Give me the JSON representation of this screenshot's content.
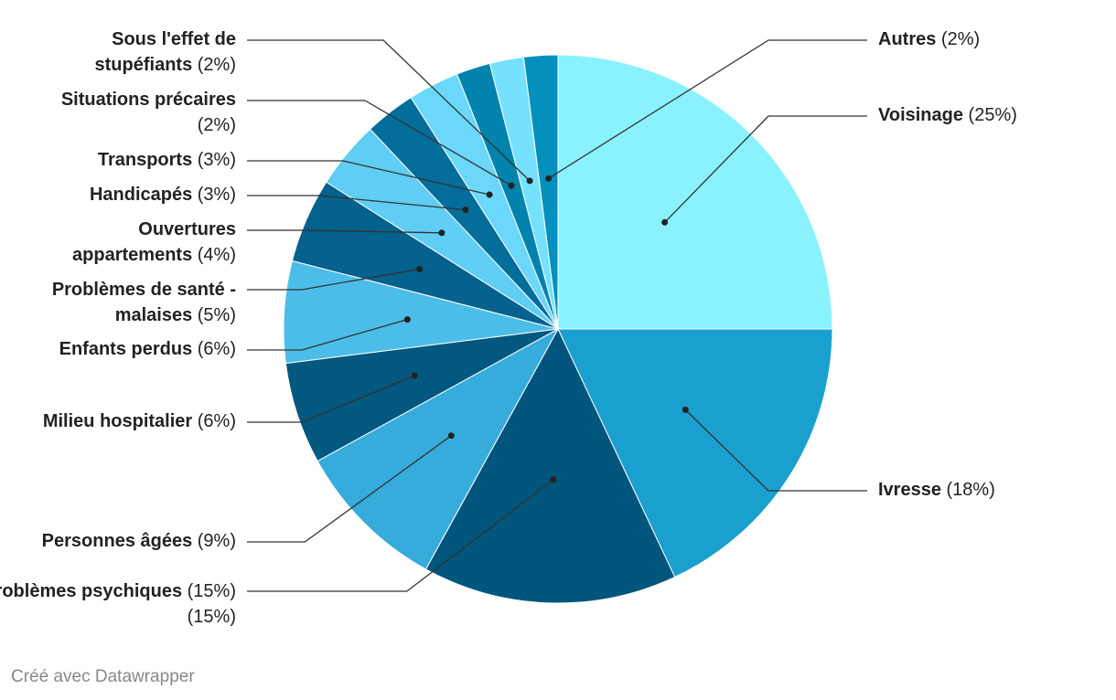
{
  "chart_data": {
    "type": "pie",
    "start_angle": "12 o'clock",
    "direction": "clockwise",
    "slices": [
      {
        "label": "Voisinage",
        "value": 25,
        "pct": "(25%)",
        "color": "#8af2ff"
      },
      {
        "label": "Ivresse",
        "value": 18,
        "pct": "(18%)",
        "color": "#1aa0cf"
      },
      {
        "label": "Problèmes psychiques",
        "value": 15,
        "pct": "(15%)",
        "color": "#02557d"
      },
      {
        "label": "Personnes âgées",
        "value": 9,
        "pct": "(9%)",
        "color": "#36acdc"
      },
      {
        "label": "Milieu hospitalier",
        "value": 6,
        "pct": "(6%)",
        "color": "#02587f"
      },
      {
        "label": "Enfants perdus",
        "value": 6,
        "pct": "(6%)",
        "color": "#4cbde8"
      },
      {
        "label": "Problèmes de santé - malaises",
        "value": 5,
        "pct": "(5%)",
        "color": "#05618d"
      },
      {
        "label": "Ouvertures appartements",
        "value": 4,
        "pct": "(4%)",
        "color": "#5fcdf4"
      },
      {
        "label": "Handicapés",
        "value": 3,
        "pct": "(3%)",
        "color": "#046e9b"
      },
      {
        "label": "Transports",
        "value": 3,
        "pct": "(3%)",
        "color": "#6ad7fb"
      },
      {
        "label": "Situations précaires",
        "value": 2,
        "pct": "(2%)",
        "color": "#0183ad"
      },
      {
        "label": "Sous l'effet de stupéfiants",
        "value": 2,
        "pct": "(2%)",
        "color": "#75e1fd"
      },
      {
        "label": "Autres",
        "value": 2,
        "pct": "(2%)",
        "color": "#0390bd"
      }
    ]
  },
  "footer": "Créé avec Datawrapper"
}
